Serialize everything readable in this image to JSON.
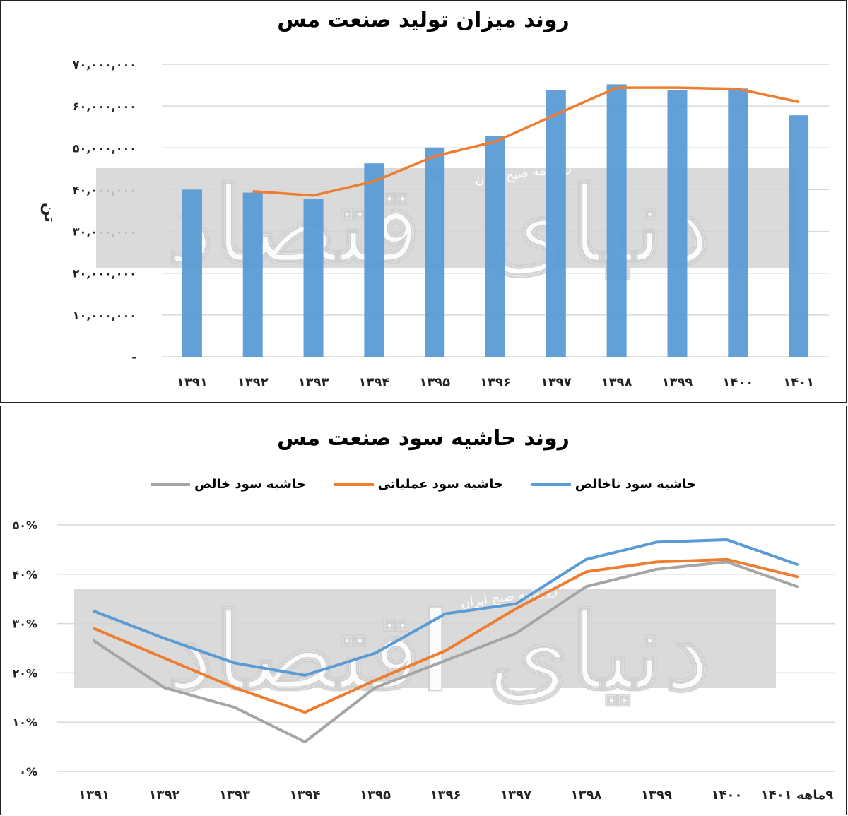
{
  "charts": [
    {
      "title": "روند میزان تولید صنعت مس",
      "ylabel": "تن"
    },
    {
      "title": "روند حاشیه سود صنعت مس"
    }
  ],
  "watermark": {
    "logo_text": "دنیای اقتصاد",
    "caption": "روزنامه صبح ایران"
  },
  "colors": {
    "blue": "#5b9bd5",
    "orange": "#ed7d31",
    "gray": "#a5a5a5",
    "grid": "#d9d9d9"
  },
  "chart_data": [
    {
      "type": "bar",
      "title": "روند میزان تولید صنعت مس",
      "ylabel": "تن",
      "categories": [
        "۱۳۹۱",
        "۱۳۹۲",
        "۱۳۹۳",
        "۱۳۹۴",
        "۱۳۹۵",
        "۱۳۹۶",
        "۱۳۹۷",
        "۱۳۹۸",
        "۱۳۹۹",
        "۱۴۰۰",
        "۱۴۰۱"
      ],
      "yticks": [
        "-",
        "۱۰,۰۰۰,۰۰۰",
        "۲۰,۰۰۰,۰۰۰",
        "۳۰,۰۰۰,۰۰۰",
        "۴۰,۰۰۰,۰۰۰",
        "۵۰,۰۰۰,۰۰۰",
        "۶۰,۰۰۰,۰۰۰",
        "۷۰,۰۰۰,۰۰۰"
      ],
      "ylim": [
        0,
        70000000
      ],
      "grid": true,
      "series": [
        {
          "kind": "bar",
          "color": "#5b9bd5",
          "values": [
            40000000,
            39300000,
            37700000,
            46300000,
            50100000,
            52800000,
            63800000,
            65200000,
            63800000,
            64200000,
            57800000
          ]
        },
        {
          "kind": "line",
          "color": "#ed7d31",
          "values": [
            null,
            39600000,
            38600000,
            42000000,
            48000000,
            51500000,
            58000000,
            64400000,
            64400000,
            64100000,
            61000000
          ]
        }
      ]
    },
    {
      "type": "line",
      "title": "روند حاشیه سود صنعت مس",
      "categories": [
        "۱۳۹۱",
        "۱۳۹۲",
        "۱۳۹۳",
        "۱۳۹۴",
        "۱۳۹۵",
        "۱۳۹۶",
        "۱۳۹۷",
        "۱۳۹۸",
        "۱۳۹۹",
        "۱۴۰۰",
        "۹ماهه ۱۴۰۱"
      ],
      "yticks": [
        "۰%",
        "۱۰%",
        "۲۰%",
        "۳۰%",
        "۴۰%",
        "۵۰%"
      ],
      "ylim": [
        0,
        50
      ],
      "grid": true,
      "legend": "top",
      "series": [
        {
          "name": "حاشیه سود ناخالص",
          "color": "#5b9bd5",
          "values": [
            32.5,
            27.0,
            22.0,
            19.5,
            24.0,
            32.0,
            34.0,
            43.0,
            46.5,
            47.0,
            42.0
          ]
        },
        {
          "name": "حاشیه سود عملیاتی",
          "color": "#ed7d31",
          "values": [
            29.0,
            23.0,
            17.0,
            12.0,
            18.5,
            24.5,
            33.0,
            40.5,
            42.5,
            43.0,
            39.5
          ]
        },
        {
          "name": "حاشیه سود خالص",
          "color": "#a5a5a5",
          "values": [
            26.5,
            17.0,
            13.0,
            6.0,
            17.0,
            22.5,
            28.0,
            37.5,
            41.0,
            42.5,
            37.5
          ]
        }
      ]
    }
  ]
}
